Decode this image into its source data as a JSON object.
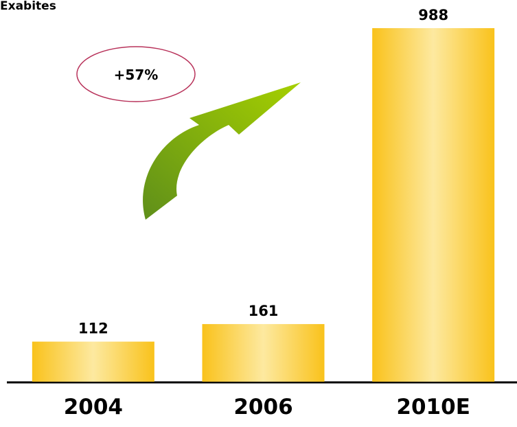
{
  "chart_data": {
    "type": "bar",
    "title": "Exabites",
    "categories": [
      "2004",
      "2006",
      "2010E"
    ],
    "values": [
      112,
      161,
      988
    ],
    "color": "#f9c21b",
    "annotation": "+57%"
  }
}
